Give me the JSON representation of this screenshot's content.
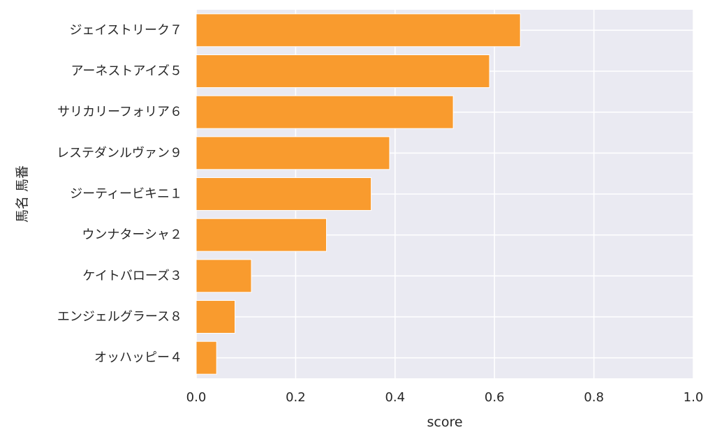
{
  "chart_data": {
    "type": "bar",
    "orientation": "horizontal",
    "categories": [
      "ジェイストリーク７",
      "アーネストアイズ５",
      "サリカリーフォリア６",
      "レステダンルヴァン９",
      "ジーティービキニ１",
      "ウンナターシャ２",
      "ケイトバローズ３",
      "エンジェルグラース８",
      "オッハッピー４"
    ],
    "values": [
      0.652,
      0.59,
      0.517,
      0.389,
      0.352,
      0.262,
      0.111,
      0.078,
      0.041
    ],
    "xlabel": "score",
    "ylabel": "馬名 馬番",
    "xlim": [
      0,
      1.0
    ],
    "xticks": [
      "0.0",
      "0.2",
      "0.4",
      "0.6",
      "0.8",
      "1.0"
    ],
    "grid": true,
    "colors": {
      "bar": "#f99b2e",
      "bar_edge": "#ffffff",
      "plot_background": "#eaeaf2",
      "grid": "#ffffff"
    }
  }
}
